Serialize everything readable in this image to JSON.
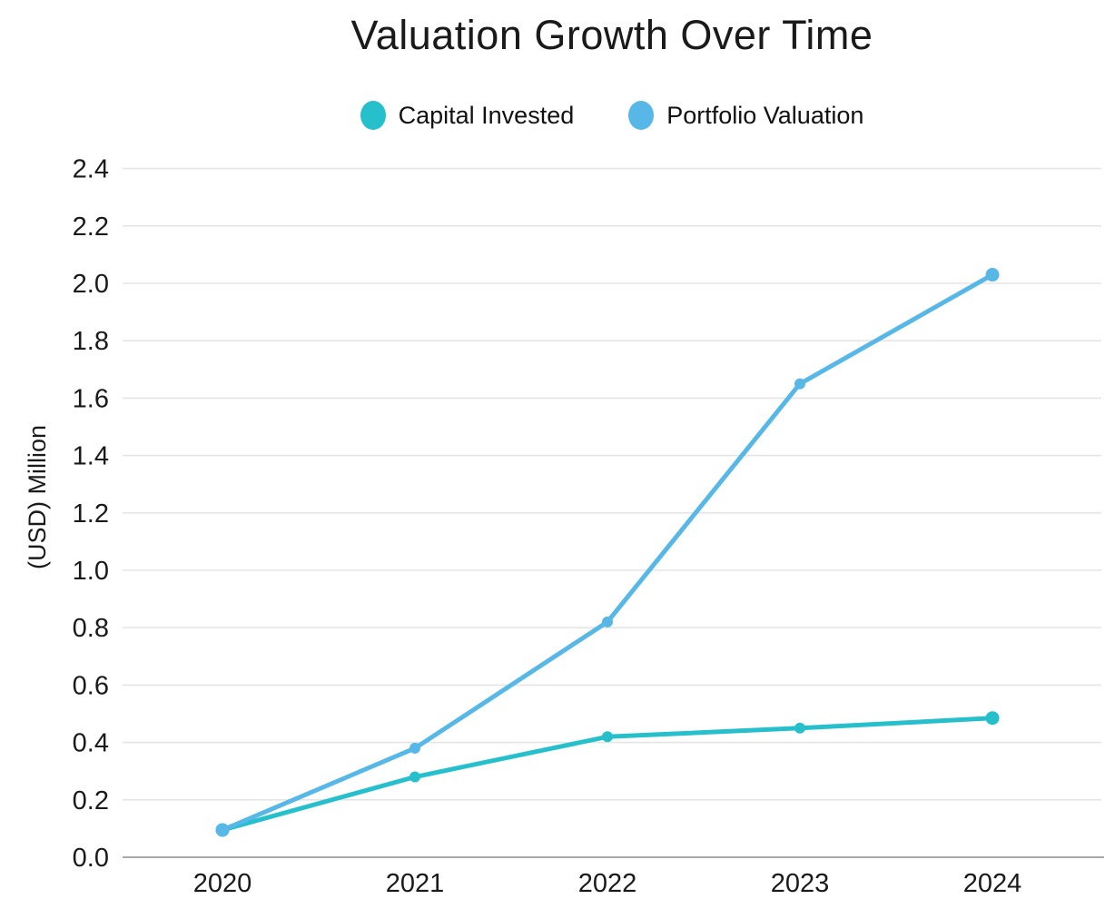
{
  "title": "Valuation Growth Over Time",
  "y_axis_label": "(USD) Million",
  "chart_data": {
    "type": "line",
    "title": "Valuation Growth Over Time",
    "xlabel": "",
    "ylabel": "(USD) Million",
    "categories": [
      "2020",
      "2021",
      "2022",
      "2023",
      "2024"
    ],
    "series": [
      {
        "name": "Capital Invested",
        "color": "#26c0cd",
        "values": [
          0.095,
          0.28,
          0.42,
          0.45,
          0.485
        ]
      },
      {
        "name": "Portfolio Valuation",
        "color": "#57b8e8",
        "values": [
          0.095,
          0.38,
          0.82,
          1.65,
          2.03
        ]
      }
    ],
    "ylim": [
      0.0,
      2.5
    ],
    "ytick_step": 0.2,
    "yticks": [
      "0.0",
      "0.2",
      "0.4",
      "0.6",
      "0.8",
      "1.0",
      "1.2",
      "1.4",
      "1.6",
      "1.8",
      "2.0",
      "2.2",
      "2.4"
    ],
    "grid": true,
    "legend_position": "top"
  },
  "colors": {
    "grid": "#e5e5e5",
    "axis": "#a8a8a8",
    "text": "#1a1a1a",
    "background": "#ffffff"
  }
}
